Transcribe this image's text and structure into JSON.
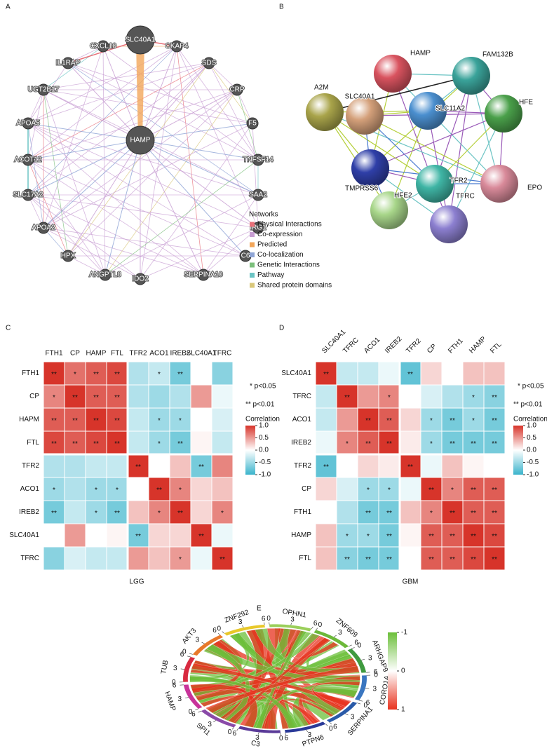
{
  "chart_data": [
    {
      "type": "network",
      "panel_label": "A",
      "nodes": [
        "SLC40A1",
        "HAMP",
        "CXCL10",
        "CKAP4",
        "IL1RAP",
        "SDS",
        "UGT2B17",
        "CRP",
        "APOA5",
        "F5",
        "ACOT12",
        "TNFSF14",
        "SLC17A2",
        "SAA2",
        "APOA2",
        "IRG1",
        "HPX",
        "C6",
        "ANGPTL8",
        "SERPINA10",
        "IDO2"
      ],
      "legend_title": "Networks",
      "legend": [
        {
          "name": "Physical Interactions",
          "color": "#e8707a"
        },
        {
          "name": "Co-expression",
          "color": "#c89ed3"
        },
        {
          "name": "Predicted",
          "color": "#f2a65a"
        },
        {
          "name": "Co-localization",
          "color": "#8fa5d6"
        },
        {
          "name": "Genetic Interactions",
          "color": "#7cbf7c"
        },
        {
          "name": "Pathway",
          "color": "#6cc4c4"
        },
        {
          "name": "Shared protein domains",
          "color": "#d9c77a"
        }
      ]
    },
    {
      "type": "network",
      "panel_label": "B",
      "nodes": [
        {
          "name": "HAMP",
          "color": "#d9535f"
        },
        {
          "name": "FAM132B",
          "color": "#3aa39a"
        },
        {
          "name": "A2M",
          "color": "#a9a44a"
        },
        {
          "name": "SLC40A1",
          "color": "#d4a07a"
        },
        {
          "name": "SLC11A2",
          "color": "#4b8fcf"
        },
        {
          "name": "HFE",
          "color": "#4aa04a"
        },
        {
          "name": "TMPRSS6",
          "color": "#2f3fa8"
        },
        {
          "name": "TFR2",
          "color": "#3fb5a5"
        },
        {
          "name": "EPO",
          "color": "#d98a9a"
        },
        {
          "name": "HFE2",
          "color": "#a8d68a"
        },
        {
          "name": "TFRC",
          "color": "#8c7fd0"
        }
      ]
    },
    {
      "type": "heatmap",
      "panel_label": "C",
      "title": "LGG",
      "columns": [
        "FTH1",
        "CP",
        "HAMP",
        "FTL",
        "TFR2",
        "ACO1",
        "IREB2",
        "SLC40A1",
        "TFRC"
      ],
      "rows": [
        "FTH1",
        "CP",
        "HAPM",
        "FTL",
        "TFR2",
        "ACO1",
        "IREB2",
        "SLC40A1",
        "TFRC"
      ],
      "values": [
        [
          1.0,
          0.7,
          0.8,
          0.9,
          -0.4,
          -0.3,
          -0.7,
          0,
          -0.6
        ],
        [
          0.6,
          1.0,
          0.8,
          0.8,
          -0.4,
          -0.5,
          -0.4,
          0.5,
          -0.1
        ],
        [
          0.8,
          0.8,
          1.0,
          0.9,
          -0.3,
          -0.5,
          -0.5,
          0,
          -0.2
        ],
        [
          0.9,
          0.8,
          0.9,
          1.0,
          -0.3,
          -0.5,
          -0.7,
          0.05,
          -0.3
        ],
        [
          -0.4,
          -0.4,
          -0.3,
          -0.3,
          1.0,
          0,
          0.3,
          -0.7,
          0.6
        ],
        [
          -0.5,
          -0.4,
          -0.5,
          -0.5,
          0,
          1.0,
          0.6,
          0.2,
          0.3
        ],
        [
          -0.7,
          -0.3,
          -0.5,
          -0.7,
          0.3,
          0.6,
          1.0,
          0.2,
          0.6
        ],
        [
          0,
          0.5,
          0,
          0.05,
          -0.7,
          0.2,
          0.2,
          1.0,
          -0.1
        ],
        [
          -0.6,
          -0.2,
          -0.3,
          -0.3,
          0.5,
          0.3,
          0.5,
          -0.1,
          1.0
        ]
      ],
      "significance": [
        [
          "**",
          "*",
          "**",
          "**",
          null,
          "*",
          "**",
          null,
          null
        ],
        [
          "*",
          "**",
          "**",
          "**",
          null,
          null,
          null,
          null,
          null
        ],
        [
          "**",
          "**",
          "**",
          "**",
          null,
          "*",
          "*",
          null,
          null
        ],
        [
          "**",
          "**",
          "**",
          "**",
          null,
          "*",
          "**",
          null,
          null
        ],
        [
          null,
          null,
          null,
          null,
          "**",
          null,
          null,
          "**",
          null
        ],
        [
          "*",
          null,
          "*",
          "*",
          null,
          "**",
          "*",
          null,
          null
        ],
        [
          "**",
          null,
          "*",
          "**",
          null,
          "*",
          "**",
          null,
          "*"
        ],
        [
          null,
          null,
          null,
          null,
          "**",
          null,
          null,
          "**",
          null
        ],
        [
          null,
          null,
          null,
          null,
          null,
          null,
          "*",
          null,
          "**"
        ]
      ],
      "legend_notes": [
        "* p<0.05",
        "** p<0.01"
      ],
      "colorbar_title": "Correlation",
      "clim": [
        -1,
        1
      ],
      "cticks": [
        {
          "value": 1,
          "label": "1.0"
        },
        0.5,
        {
          "value": 0,
          "label": "0.0"
        },
        -0.5,
        {
          "value": -1,
          "label": "-1.0"
        }
      ],
      "colors": {
        "low": "#3bb4cc",
        "mid": "#ffffff",
        "high": "#d7342a"
      }
    },
    {
      "type": "heatmap",
      "panel_label": "D",
      "title": "GBM",
      "columns": [
        "SLC40A1",
        "TFRC",
        "ACO1",
        "IREB2",
        "TFR2",
        "CP",
        "FTH1",
        "HAMP",
        "FTL"
      ],
      "rows": [
        "SLC40A1",
        "TFRC",
        "ACO1",
        "IREB2",
        "TFR2",
        "CP",
        "FTH1",
        "HAMP",
        "FTL"
      ],
      "values": [
        [
          1.0,
          -0.3,
          -0.3,
          -0.1,
          -0.8,
          0.2,
          0,
          0.3,
          0.3
        ],
        [
          -0.3,
          1.0,
          0.5,
          0.6,
          0,
          -0.2,
          -0.4,
          -0.5,
          -0.6
        ],
        [
          -0.3,
          0.5,
          1.0,
          0.8,
          0.2,
          -0.5,
          -0.7,
          -0.5,
          -0.7
        ],
        [
          -0.1,
          0.6,
          0.8,
          1.0,
          0.1,
          -0.5,
          -0.7,
          -0.7,
          -0.7
        ],
        [
          -0.8,
          0,
          0.2,
          0.1,
          1.0,
          -0.1,
          0.3,
          0.05,
          0
        ],
        [
          0.2,
          -0.2,
          -0.5,
          -0.5,
          -0.1,
          1.0,
          0.6,
          0.8,
          0.8
        ],
        [
          0,
          -0.4,
          -0.7,
          -0.7,
          0.3,
          0.6,
          1.0,
          0.8,
          0.8
        ],
        [
          0.3,
          -0.5,
          -0.5,
          -0.7,
          0.05,
          0.8,
          0.8,
          1.0,
          0.9
        ],
        [
          0.3,
          -0.6,
          -0.7,
          -0.7,
          0,
          0.8,
          0.8,
          0.9,
          1.0
        ]
      ],
      "significance": [
        [
          "**",
          null,
          null,
          null,
          "**",
          null,
          null,
          null,
          null
        ],
        [
          null,
          "**",
          null,
          "*",
          null,
          null,
          null,
          "*",
          "**"
        ],
        [
          null,
          null,
          "**",
          "**",
          null,
          "*",
          "**",
          "*",
          "**"
        ],
        [
          null,
          "*",
          "**",
          "**",
          null,
          "*",
          "**",
          "**",
          "**"
        ],
        [
          "**",
          null,
          null,
          null,
          "**",
          null,
          null,
          null,
          null
        ],
        [
          null,
          null,
          "*",
          "*",
          null,
          "**",
          "*",
          "**",
          "**"
        ],
        [
          null,
          null,
          "**",
          "**",
          null,
          "*",
          "**",
          "**",
          "**"
        ],
        [
          null,
          "*",
          "*",
          "**",
          null,
          "**",
          "**",
          "**",
          "**"
        ],
        [
          null,
          "**",
          "**",
          "**",
          null,
          "**",
          "**",
          "**",
          "**"
        ]
      ],
      "legend_notes": [
        "* p<0.05",
        "** p<0.01"
      ],
      "colorbar_title": "Correlation",
      "clim": [
        -1,
        1
      ],
      "cticks": [
        {
          "value": 1,
          "label": "1.0"
        },
        0.5,
        {
          "value": 0,
          "label": "0.0"
        },
        -0.5,
        {
          "value": -1,
          "label": "-1.0"
        }
      ],
      "colors": {
        "low": "#3bb4cc",
        "mid": "#ffffff",
        "high": "#d7342a"
      }
    },
    {
      "type": "chord",
      "panel_label": "E",
      "segments": [
        {
          "name": "OPHN1",
          "color": "#9bcf5a"
        },
        {
          "name": "ZNF609",
          "color": "#6cb83a"
        },
        {
          "name": "ARHGAP9",
          "color": "#3f9a3f"
        },
        {
          "name": "CORO1A",
          "color": "#3a76c0"
        },
        {
          "name": "SERPINA1",
          "color": "#2a5aa8"
        },
        {
          "name": "PTPN6",
          "color": "#2a3a98"
        },
        {
          "name": "C3",
          "color": "#5a3a98"
        },
        {
          "name": "SPI1",
          "color": "#8a4aa8"
        },
        {
          "name": "HAMP",
          "color": "#c8339a"
        },
        {
          "name": "TUB",
          "color": "#d82a40"
        },
        {
          "name": "AKT3",
          "color": "#e8782a"
        },
        {
          "name": "ZNF292",
          "color": "#e8c82a"
        }
      ],
      "arc_ticks": [
        0,
        3,
        6
      ],
      "clim": [
        -1,
        1
      ],
      "cticks": [
        -1,
        0,
        1
      ],
      "colors": {
        "low": "#6cbf3a",
        "mid": "#ffffff",
        "high": "#e8321e"
      }
    }
  ]
}
